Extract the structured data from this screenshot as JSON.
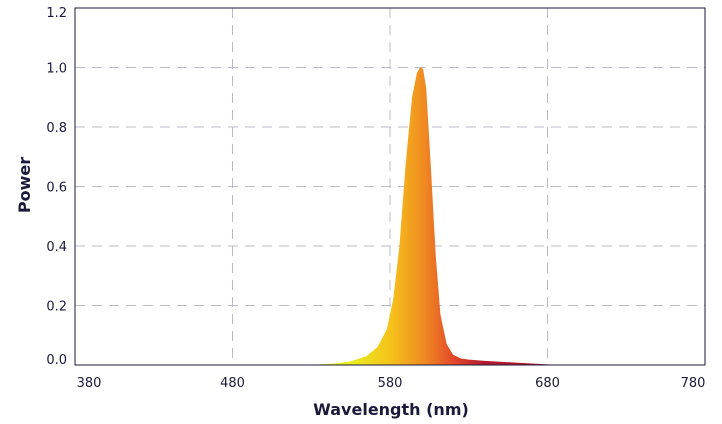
{
  "chart_data": {
    "type": "area",
    "title": "",
    "xlabel": "Wavelength (nm)",
    "ylabel": "Power",
    "xlim": [
      380,
      780
    ],
    "ylim": [
      0,
      1.2
    ],
    "x_ticks": [
      380,
      480,
      580,
      680,
      780
    ],
    "y_ticks": [
      0.0,
      0.2,
      0.4,
      0.6,
      0.8,
      1.0,
      1.2
    ],
    "x_tick_labels": [
      "380",
      "480",
      "580",
      "680",
      "780"
    ],
    "y_tick_labels": [
      "0.0",
      "0.2",
      "0.4",
      "0.6",
      "0.8",
      "1.0",
      "1.2"
    ],
    "grid": true,
    "fill_gradient": [
      "#e8ee20",
      "#f5c21a",
      "#f08a22",
      "#e2452a",
      "#b01a2c"
    ],
    "series": [
      {
        "x": [
          380,
          500,
          530,
          545,
          555,
          565,
          572,
          578,
          582,
          586,
          590,
          594,
          597,
          599,
          600,
          601,
          603,
          606,
          609,
          612,
          616,
          620,
          625,
          630,
          640,
          650,
          660,
          670,
          680,
          690,
          700,
          780
        ],
        "y": [
          0,
          0,
          0.001,
          0.005,
          0.012,
          0.03,
          0.06,
          0.12,
          0.22,
          0.4,
          0.68,
          0.9,
          0.98,
          1.0,
          1.0,
          0.995,
          0.93,
          0.66,
          0.37,
          0.17,
          0.07,
          0.035,
          0.022,
          0.018,
          0.014,
          0.011,
          0.008,
          0.005,
          0.002,
          0.0005,
          0,
          0
        ]
      }
    ]
  }
}
